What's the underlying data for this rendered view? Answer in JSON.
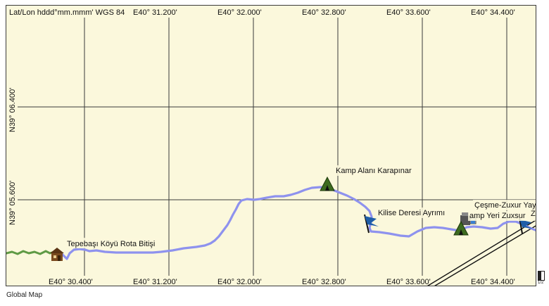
{
  "map": {
    "coordinate_format": "Lat/Lon hddd°mm.mmm' WGS 84",
    "longitude_labels": [
      "E40° 30.400'",
      "E40° 31.200'",
      "E40° 32.000'",
      "E40° 32.800'",
      "E40° 33.600'",
      "E40° 34.400'"
    ],
    "latitude_labels": [
      "N39° 06.400'",
      "N39° 05.600'"
    ],
    "colors": {
      "background": "#fbf8dc",
      "grid": "#3a3a3a",
      "track_main": "#8e92ee",
      "track_start": "#5f9a45",
      "road": "#111111"
    },
    "waypoints": [
      {
        "label": "Tepebaşı Köyü Rota Bitişi",
        "icon": "house-icon"
      },
      {
        "label": "Kamp Alanı Karapınar",
        "icon": "campground-icon"
      },
      {
        "label": "Kilise Deresi Ayrımı",
        "icon": "flag-icon"
      },
      {
        "label": "Çeşme-Zuxur Yayl",
        "icon": "drinking-water-icon"
      },
      {
        "label": "amp Yeri Zuxsur",
        "icon": "campground-icon"
      },
      {
        "label": "Z",
        "icon": "flag-icon"
      }
    ]
  },
  "footer": {
    "label": "Global Map"
  },
  "pager": {
    "label": "1/2"
  }
}
